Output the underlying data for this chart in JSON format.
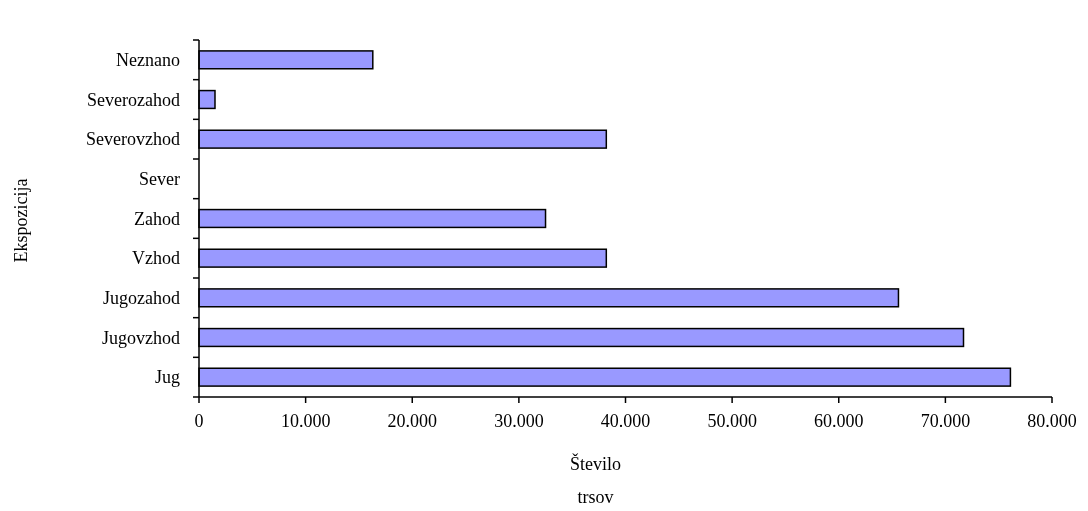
{
  "chart_data": {
    "type": "bar",
    "orientation": "horizontal",
    "xlabel": "Število trsov",
    "ylabel": "Ekspozicija",
    "categories": [
      "Neznano",
      "Severozahod",
      "Severovzhod",
      "Sever",
      "Zahod",
      "Vzhod",
      "Jugozahod",
      "Jugovzhod",
      "Jug"
    ],
    "values": [
      16300,
      1500,
      38200,
      0,
      32500,
      38200,
      65600,
      71700,
      76100
    ],
    "color": "#9999ff",
    "xlim": [
      0,
      80000
    ],
    "xticks": [
      0,
      {
        "value": 10000,
        "label": "10.000"
      },
      {
        "value": 20000,
        "label": "20.000"
      },
      {
        "value": 30000,
        "label": "30.000"
      },
      {
        "value": 40000,
        "label": "40.000"
      },
      {
        "value": 50000,
        "label": "50.000"
      },
      {
        "value": 60000,
        "label": "60.000"
      },
      {
        "value": 70000,
        "label": "70.000"
      },
      {
        "value": 80000,
        "label": "80.000"
      }
    ]
  }
}
